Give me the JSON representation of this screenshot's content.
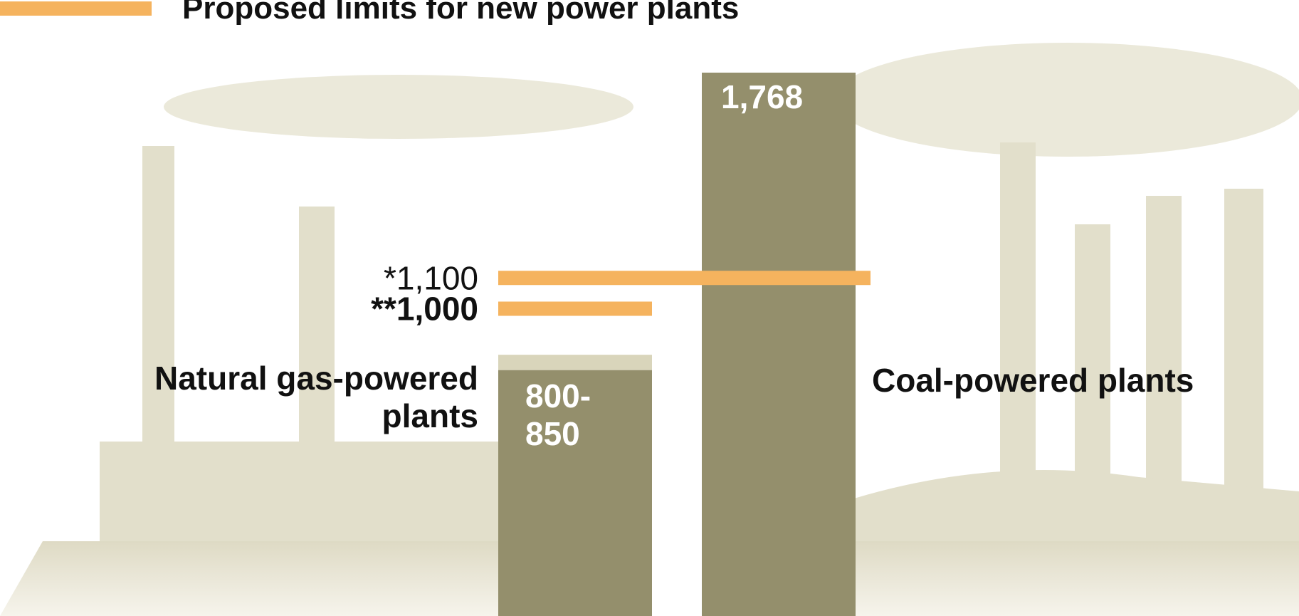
{
  "chart_data": {
    "type": "bar",
    "legend_label": "Proposed limits for new power plants",
    "limit_color": "#f5b35e",
    "bar_color": "#948f6c",
    "range_color": "#d9d5bb",
    "bars": [
      {
        "name": "Natural gas-powered plants",
        "low": 800,
        "high": 850,
        "value_label": "800-850",
        "limit": {
          "value": 1000,
          "label": "**1,000"
        }
      },
      {
        "name": "Coal-powered plants",
        "value": 1768,
        "value_label": "1,768",
        "limit": {
          "value": 1100,
          "label": "*1,100"
        }
      }
    ]
  }
}
